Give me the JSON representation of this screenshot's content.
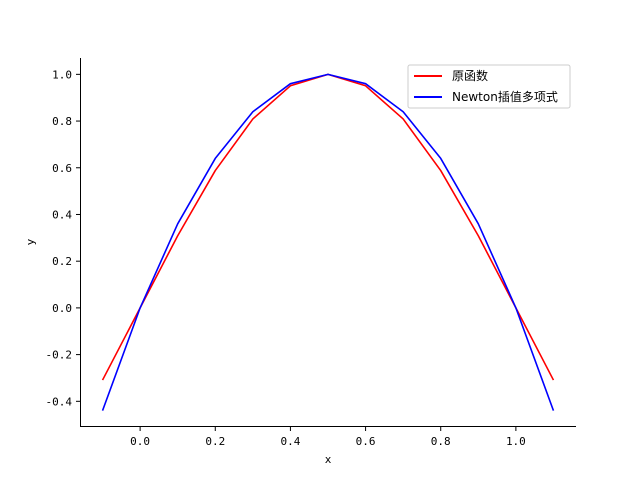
{
  "chart_data": {
    "type": "line",
    "title": "",
    "xlabel": "x",
    "ylabel": "y",
    "xlim": [
      -0.16,
      1.16
    ],
    "ylim": [
      -0.51,
      1.07
    ],
    "xticks": [
      0.0,
      0.2,
      0.4,
      0.6,
      0.8,
      1.0
    ],
    "xtick_labels": [
      "0.0",
      "0.2",
      "0.4",
      "0.6",
      "0.8",
      "1.0"
    ],
    "yticks": [
      -0.4,
      -0.2,
      0.0,
      0.2,
      0.4,
      0.6,
      0.8,
      1.0
    ],
    "ytick_labels": [
      "-0.4",
      "-0.2",
      "0.0",
      "0.2",
      "0.4",
      "0.6",
      "0.8",
      "1.0"
    ],
    "grid": false,
    "legend_position": "top-right",
    "series": [
      {
        "name": "原函数",
        "color": "#ff0000",
        "x": [
          -0.1,
          0.0,
          0.1,
          0.2,
          0.3,
          0.4,
          0.5,
          0.6,
          0.7,
          0.8,
          0.9,
          1.0,
          1.1
        ],
        "y": [
          -0.309,
          0.0,
          0.309,
          0.588,
          0.809,
          0.951,
          1.0,
          0.951,
          0.809,
          0.588,
          0.309,
          0.0,
          -0.309
        ]
      },
      {
        "name": "Newton插值多项式",
        "color": "#0000ff",
        "x": [
          -0.1,
          0.0,
          0.1,
          0.2,
          0.3,
          0.4,
          0.5,
          0.6,
          0.7,
          0.8,
          0.9,
          1.0,
          1.1
        ],
        "y": [
          -0.44,
          0.0,
          0.36,
          0.64,
          0.84,
          0.96,
          1.0,
          0.96,
          0.84,
          0.64,
          0.36,
          0.0,
          -0.44
        ]
      }
    ]
  }
}
